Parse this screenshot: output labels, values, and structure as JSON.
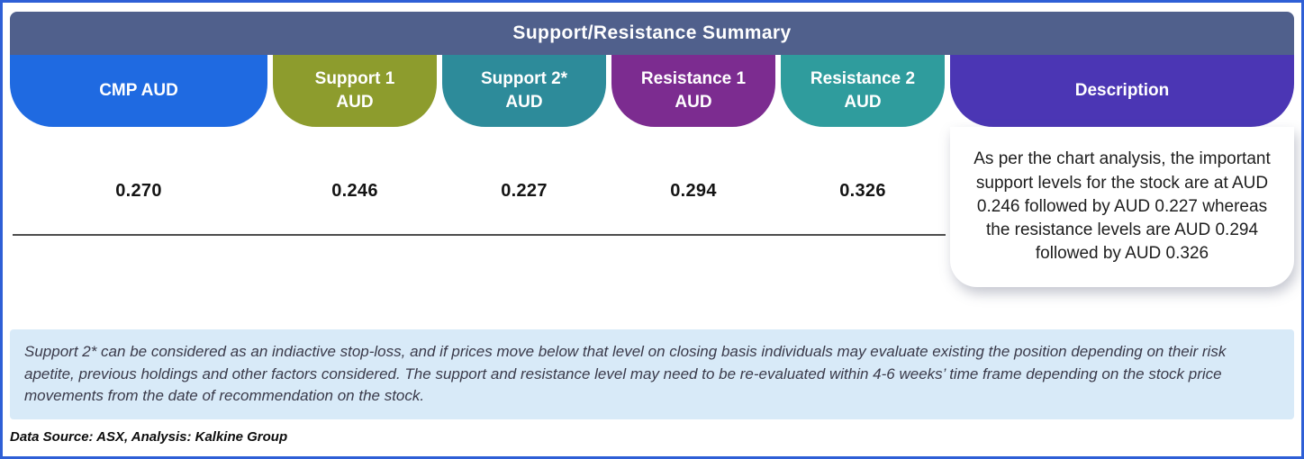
{
  "header": {
    "title": "Support/Resistance Summary",
    "bg": "#50608c"
  },
  "columns": [
    {
      "label1": "CMP AUD",
      "label2": "",
      "value": "0.270",
      "color": "#1f6ae1"
    },
    {
      "label1": "Support 1",
      "label2": "AUD",
      "value": "0.246",
      "color": "#8d9c2d"
    },
    {
      "label1": "Support 2*",
      "label2": "AUD",
      "value": "0.227",
      "color": "#2d8b9a"
    },
    {
      "label1": "Resistance 1",
      "label2": "AUD",
      "value": "0.294",
      "color": "#7c2c90"
    },
    {
      "label1": "Resistance 2",
      "label2": "AUD",
      "value": "0.326",
      "color": "#2f9c9d"
    }
  ],
  "description": {
    "label": "Description",
    "color": "#4b36b4",
    "text": "As per the chart analysis, the important support levels for the stock are at AUD 0.246 followed by AUD 0.227 whereas the resistance levels are AUD 0.294 followed by AUD 0.326"
  },
  "note": "Support 2* can be considered as an indiactive stop-loss, and if prices move below that level on closing basis individuals may evaluate existing the position depending on their risk apetite, previous holdings and other factors considered. The support and resistance level may need to be re-evaluated within 4-6 weeks’ time frame depending on the stock price movements from  the date of recommendation on the stock.",
  "footer": "Data Source: ASX, Analysis: Kalkine Group",
  "colors": {
    "frame_border": "#2e5fd6",
    "note_bg": "#d8eaf8"
  }
}
